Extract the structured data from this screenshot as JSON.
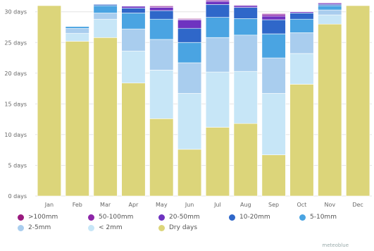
{
  "chart_data": {
    "type": "bar",
    "stacked": true,
    "categories": [
      "Jan",
      "Feb",
      "Mar",
      "Apr",
      "May",
      "Jun",
      "Jul",
      "Aug",
      "Sep",
      "Oct",
      "Nov",
      "Dec"
    ],
    "y_ticks": [
      "0 days",
      "5 days",
      "10 days",
      "15 days",
      "20 days",
      "25 days",
      "30 days"
    ],
    "ylim": [
      0,
      31
    ],
    "grid": true,
    "legend_position": "bottom",
    "series": [
      {
        "name": "Dry days",
        "color": "#dcd57a",
        "values": [
          31,
          25.2,
          25.8,
          18.4,
          12.6,
          7.6,
          11.2,
          11.8,
          6.7,
          18.2,
          28.0,
          31
        ]
      },
      {
        "name": "< 2mm",
        "color": "#c7e6f7",
        "values": [
          0,
          1.3,
          3.0,
          5.2,
          7.9,
          9.1,
          9.0,
          8.5,
          10.0,
          5.0,
          1.5,
          0
        ]
      },
      {
        "name": "2-5mm",
        "color": "#a9cdee",
        "values": [
          0,
          0.8,
          1.0,
          3.6,
          5.0,
          5.0,
          5.6,
          5.9,
          5.8,
          3.4,
          0.8,
          0
        ]
      },
      {
        "name": "5-10mm",
        "color": "#4aa4e2",
        "values": [
          0,
          0.3,
          1.2,
          2.6,
          3.3,
          3.3,
          3.3,
          2.7,
          3.9,
          2.2,
          0.7,
          0
        ]
      },
      {
        "name": "10-20mm",
        "color": "#2f67c9",
        "values": [
          0,
          0,
          0.2,
          0.8,
          1.4,
          2.3,
          2.1,
          1.8,
          2.3,
          1.0,
          0.2,
          0
        ]
      },
      {
        "name": "20-50mm",
        "color": "#6e33c0",
        "values": [
          0,
          0,
          0,
          0.3,
          0.5,
          1.4,
          0.5,
          0.3,
          0.6,
          0.2,
          0.2,
          0
        ]
      },
      {
        "name": "50-100mm",
        "color": "#8d26a8",
        "values": [
          0,
          0,
          0,
          0,
          0.2,
          0.1,
          0.2,
          0.1,
          0.3,
          0,
          0.1,
          0
        ]
      },
      {
        "name": ">100mm",
        "color": "#9a1a7e",
        "values": [
          0,
          0,
          0,
          0,
          0.1,
          0.1,
          0.1,
          0,
          0.1,
          0,
          0,
          0
        ]
      }
    ],
    "legend_order": [
      ">100mm",
      "50-100mm",
      "20-50mm",
      "10-20mm",
      "5-10mm",
      "2-5mm",
      "< 2mm",
      "Dry days"
    ],
    "credit": "meteoblue"
  }
}
